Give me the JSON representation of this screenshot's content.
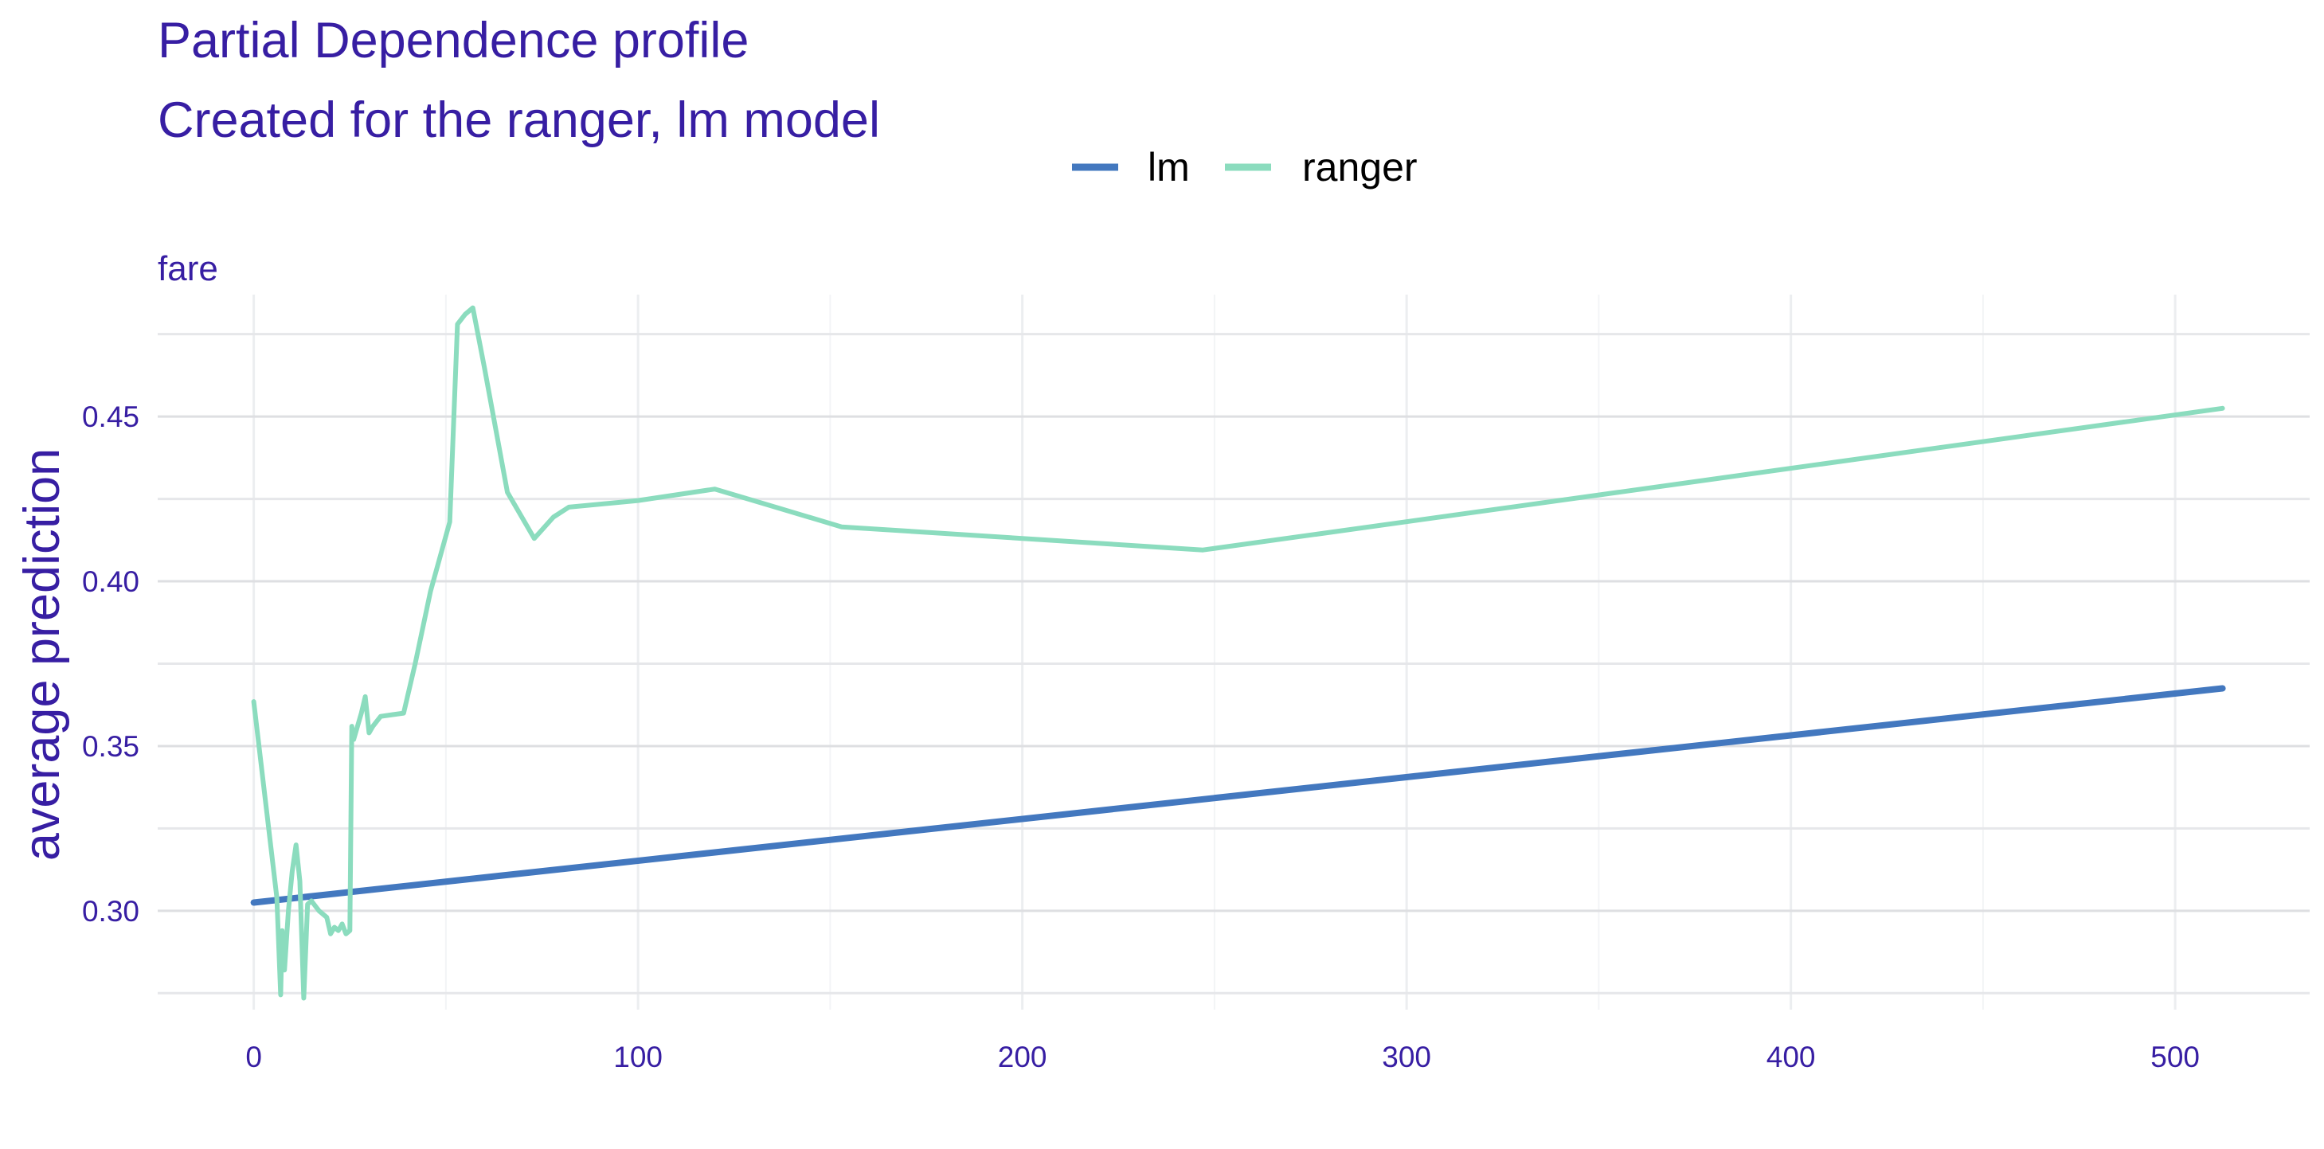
{
  "chart_data": {
    "type": "line",
    "title": "Partial Dependence profile",
    "subtitle": "Created for the ranger, lm model",
    "facet_label": "fare",
    "xlabel": "",
    "ylabel": "average prediction",
    "xlim": [
      -25,
      535
    ],
    "ylim": [
      0.27,
      0.487
    ],
    "x_ticks": [
      0,
      100,
      200,
      300,
      400,
      500
    ],
    "y_ticks": [
      0.3,
      0.35,
      0.4,
      0.45
    ],
    "y_tick_labels": [
      "0.30",
      "0.35",
      "0.40",
      "0.45"
    ],
    "x_tick_labels": [
      "0",
      "100",
      "200",
      "300",
      "400",
      "500"
    ],
    "grid": true,
    "legend_position": "top",
    "series": [
      {
        "name": "lm",
        "color": "#4378bf",
        "x": [
          0,
          512.33
        ],
        "y": [
          0.3025,
          0.3675
        ]
      },
      {
        "name": "ranger",
        "color": "#8bdcbe",
        "x": [
          0,
          6,
          7,
          7.4,
          8,
          9,
          10,
          11,
          12,
          13,
          14,
          15,
          17,
          19,
          20,
          21,
          22,
          23,
          24,
          25,
          25.5,
          26,
          27,
          28,
          29,
          30,
          31,
          33,
          36,
          39,
          42,
          46,
          51,
          53,
          55,
          57,
          60,
          66,
          73,
          78,
          82,
          100,
          120,
          153,
          247,
          512.33
        ],
        "y": [
          0.3635,
          0.304,
          0.2745,
          0.294,
          0.282,
          0.3,
          0.312,
          0.32,
          0.309,
          0.2735,
          0.302,
          0.303,
          0.3,
          0.298,
          0.293,
          0.295,
          0.294,
          0.296,
          0.293,
          0.294,
          0.356,
          0.352,
          0.356,
          0.36,
          0.365,
          0.354,
          0.356,
          0.359,
          0.3595,
          0.36,
          0.375,
          0.397,
          0.418,
          0.478,
          0.481,
          0.483,
          0.465,
          0.427,
          0.413,
          0.4195,
          0.4225,
          0.4245,
          0.428,
          0.4165,
          0.4095,
          0.4525
        ]
      }
    ]
  }
}
